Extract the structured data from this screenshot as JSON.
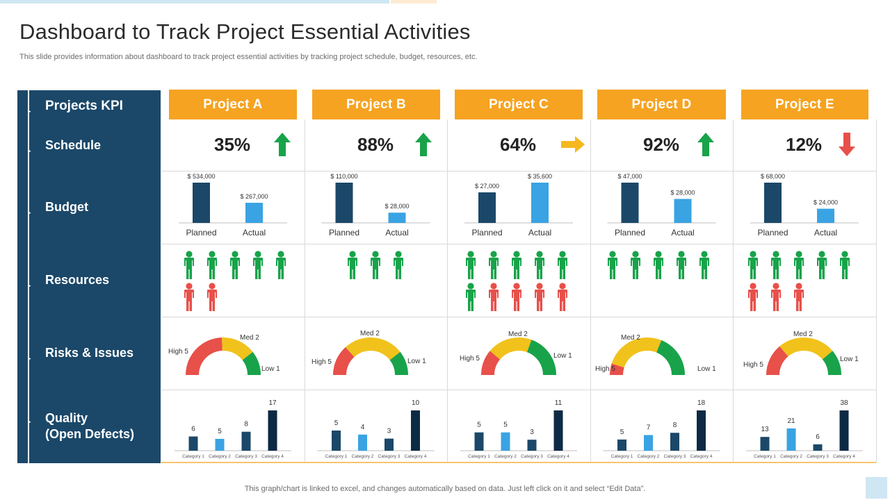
{
  "title": "Dashboard to Track Project Essential Activities",
  "subtitle": "This slide provides information about dashboard to track project essential activities by tracking project schedule, budget, resources, etc.",
  "kpis": [
    "Projects KPI",
    "Schedule",
    "Budget",
    "Resources",
    "Risks & Issues",
    "Quality",
    "(Open Defects)"
  ],
  "projects": [
    {
      "name": "Project A",
      "schedule": "35%",
      "trend": "up",
      "budget": {
        "planned_label": "$ 534,000",
        "actual_label": "$ 267,000",
        "planned": 534000,
        "actual": 267000
      },
      "resources": {
        "green": 5,
        "red": 2
      },
      "risks": {
        "high": "High 5",
        "med": "Med 2",
        "low": "Low 1"
      },
      "quality": [
        6,
        5,
        8,
        17
      ]
    },
    {
      "name": "Project B",
      "schedule": "88%",
      "trend": "up",
      "budget": {
        "planned_label": "$ 110,000",
        "actual_label": "$ 28,000",
        "planned": 110000,
        "actual": 28000
      },
      "resources": {
        "green": 3,
        "red": 0
      },
      "risks": {
        "high": "High 5",
        "med": "Med 2",
        "low": "Low 1"
      },
      "quality": [
        5,
        4,
        3,
        10
      ]
    },
    {
      "name": "Project C",
      "schedule": "64%",
      "trend": "right",
      "budget": {
        "planned_label": "$ 27,000",
        "actual_label": "$ 35,600",
        "planned": 27000,
        "actual": 35600
      },
      "resources": {
        "green": 6,
        "red": 4
      },
      "risks": {
        "high": "High 5",
        "med": "Med 2",
        "low": "Low 1"
      },
      "quality": [
        5,
        5,
        3,
        11
      ]
    },
    {
      "name": "Project D",
      "schedule": "92%",
      "trend": "up",
      "budget": {
        "planned_label": "$ 47,000",
        "actual_label": "$ 28,000",
        "planned": 47000,
        "actual": 28000
      },
      "resources": {
        "green": 5,
        "red": 0
      },
      "risks": {
        "high": "High 5",
        "med": "Med 2",
        "low": "Low 1"
      },
      "quality": [
        5,
        7,
        8,
        18
      ]
    },
    {
      "name": "Project E",
      "schedule": "12%",
      "trend": "down",
      "budget": {
        "planned_label": "$ 68,000",
        "actual_label": "$ 24,000",
        "planned": 68000,
        "actual": 24000
      },
      "resources": {
        "green": 5,
        "red": 3
      },
      "risks": {
        "high": "High 5",
        "med": "Med 2",
        "low": "Low 1"
      },
      "quality": [
        13,
        21,
        6,
        38
      ]
    }
  ],
  "budget_labels": [
    "Planned",
    "Actual"
  ],
  "quality_categories": [
    "Category 1",
    "Category 2",
    "Category 3",
    "Category 4"
  ],
  "colors": {
    "sidebar": "#1b4869",
    "header": "#f6a321",
    "planned": "#1b4869",
    "actual": "#3aa3e3",
    "person_green": "#18a34a",
    "person_red": "#e8504a",
    "gauge_red": "#e8504a",
    "gauge_yellow": "#f1c21b",
    "gauge_green": "#18a34a",
    "quality_dark": "#1b4869",
    "quality_light": "#3aa3e3",
    "quality_last": "#0d2a45"
  },
  "footer": "This graph/chart is linked to excel,  and changes automatically based on data. Just left click on it and select “Edit Data”."
}
